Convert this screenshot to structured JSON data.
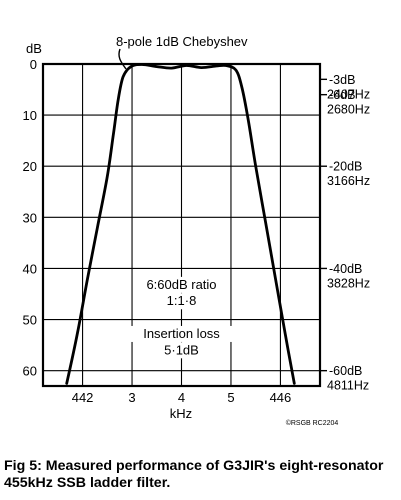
{
  "caption": "Fig 5: Measured performance of G3JIR's eight-resonator 455kHz SSB ladder filter.",
  "chart_data": {
    "type": "line",
    "title": "8-pole 1dB Chebyshev",
    "xlabel": "kHz",
    "ylabel": "dB",
    "y_axis_inverted": true,
    "ylim": [
      0,
      63
    ],
    "xlim": [
      441.2,
      446.8
    ],
    "grid": true,
    "x_ticks": [
      {
        "value": 442,
        "label": "442"
      },
      {
        "value": 443,
        "label": "3"
      },
      {
        "value": 444,
        "label": "4"
      },
      {
        "value": 445,
        "label": "5"
      },
      {
        "value": 446,
        "label": "446"
      }
    ],
    "y_ticks": [
      0,
      10,
      20,
      30,
      40,
      50,
      60
    ],
    "right_annotations": [
      {
        "y": 3,
        "db": "-3dB",
        "freq": "2407Hz"
      },
      {
        "y": 6,
        "db": "-6dB",
        "freq": "2680Hz"
      },
      {
        "y": 20,
        "db": "-20dB",
        "freq": "3166Hz"
      },
      {
        "y": 40,
        "db": "-40dB",
        "freq": "3828Hz"
      },
      {
        "y": 60,
        "db": "-60dB",
        "freq": "4811Hz"
      }
    ],
    "annotations": [
      {
        "text": "6:60dB ratio",
        "x": 444.0,
        "y": 44.0
      },
      {
        "text": "1:1·8",
        "x": 444.0,
        "y": 47.2
      },
      {
        "text": "Insertion loss",
        "x": 444.0,
        "y": 53.6
      },
      {
        "text": "5·1dB",
        "x": 444.0,
        "y": 56.8
      }
    ],
    "copyright": "©RSGB RC2204",
    "series": [
      {
        "values": [
          {
            "x": 441.68,
            "y": 62.5
          },
          {
            "x": 441.9,
            "y": 52.5
          },
          {
            "x": 442.1,
            "y": 42.0
          },
          {
            "x": 442.3,
            "y": 32.0
          },
          {
            "x": 442.5,
            "y": 22.0
          },
          {
            "x": 442.62,
            "y": 14.0
          },
          {
            "x": 442.72,
            "y": 7.0
          },
          {
            "x": 442.82,
            "y": 2.5
          },
          {
            "x": 442.98,
            "y": 0.5
          },
          {
            "x": 443.2,
            "y": 0.1
          },
          {
            "x": 443.5,
            "y": 0.5
          },
          {
            "x": 443.8,
            "y": 0.8
          },
          {
            "x": 444.1,
            "y": 0.3
          },
          {
            "x": 444.4,
            "y": 0.7
          },
          {
            "x": 444.7,
            "y": 0.4
          },
          {
            "x": 444.9,
            "y": 0.3
          },
          {
            "x": 445.1,
            "y": 1.2
          },
          {
            "x": 445.22,
            "y": 4.5
          },
          {
            "x": 445.35,
            "y": 11.0
          },
          {
            "x": 445.5,
            "y": 20.0
          },
          {
            "x": 445.7,
            "y": 31.0
          },
          {
            "x": 445.9,
            "y": 42.0
          },
          {
            "x": 446.1,
            "y": 53.0
          },
          {
            "x": 446.28,
            "y": 62.5
          }
        ]
      }
    ]
  }
}
